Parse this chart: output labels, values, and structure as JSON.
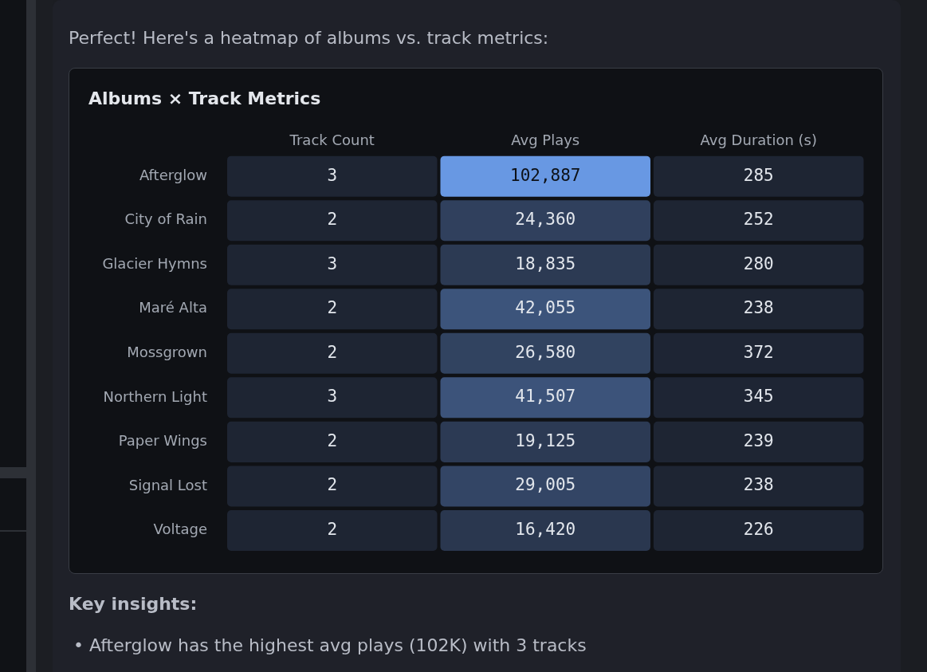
{
  "chart_data": {
    "type": "heatmap",
    "title": "Albums × Track Metrics",
    "categories": [
      "Track Count",
      "Avg Plays",
      "Avg Duration (s)"
    ],
    "y_categories": [
      "Afterglow",
      "City of Rain",
      "Glacier Hymns",
      "Maré Alta",
      "Mossgrown",
      "Northern Light",
      "Paper Wings",
      "Signal Lost",
      "Voltage"
    ],
    "cells": [
      [
        3,
        102887,
        285
      ],
      [
        2,
        24360,
        252
      ],
      [
        3,
        18835,
        280
      ],
      [
        2,
        42055,
        238
      ],
      [
        2,
        26580,
        372
      ],
      [
        3,
        41507,
        345
      ],
      [
        2,
        19125,
        239
      ],
      [
        2,
        29005,
        238
      ],
      [
        2,
        16420,
        226
      ]
    ],
    "cell_labels": [
      [
        "3",
        "102,887",
        "285"
      ],
      [
        "2",
        "24,360",
        "252"
      ],
      [
        "3",
        "18,835",
        "280"
      ],
      [
        "2",
        "42,055",
        "238"
      ],
      [
        "2",
        "26,580",
        "372"
      ],
      [
        "3",
        "41,507",
        "345"
      ],
      [
        "2",
        "19,125",
        "239"
      ],
      [
        "2",
        "29,005",
        "238"
      ],
      [
        "2",
        "16,420",
        "226"
      ]
    ],
    "annotations": [
      "Perfect! Here's a heatmap of albums vs. track metrics:",
      "Key insights:",
      "• Afterglow has the highest avg plays (102K) with 3 tracks"
    ]
  }
}
